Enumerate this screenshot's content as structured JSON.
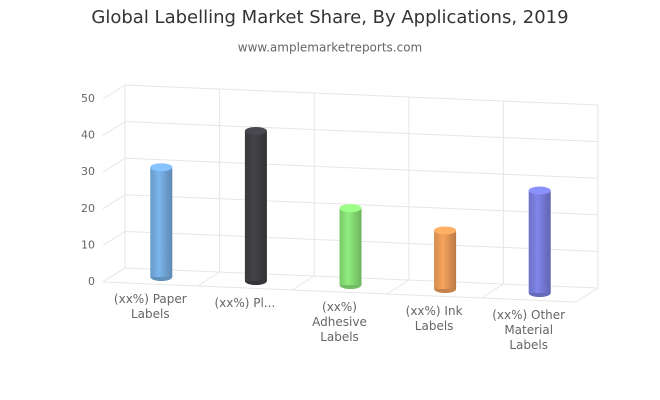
{
  "chart_data": {
    "type": "bar3d",
    "title": "Global Labelling Market Share, By Applications, 2019",
    "subtitle": "www.amplemarketreports.com",
    "categories": [
      "(xx%) Paper Labels",
      "(xx%) Pl...",
      "(xx%) Adhesive Labels",
      "(xx%) Ink Labels",
      "(xx%) Other Material Labels"
    ],
    "series": [
      {
        "values": [
          30,
          41,
          21,
          16,
          28
        ],
        "colors": [
          "#7cb5ec",
          "#434348",
          "#90ed7d",
          "#f7a35c",
          "#8085e9"
        ]
      }
    ],
    "ylim": [
      0,
      50
    ],
    "yticks": [
      0,
      10,
      20,
      30,
      40,
      50
    ],
    "grid": true
  }
}
